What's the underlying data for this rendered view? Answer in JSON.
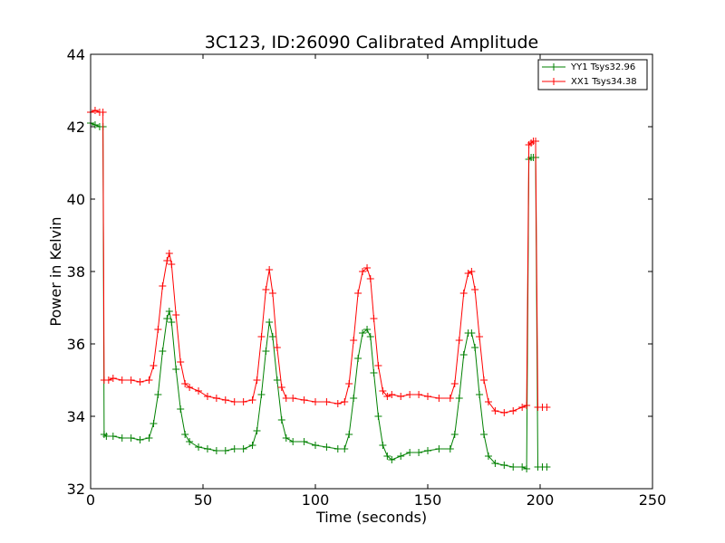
{
  "chart_data": {
    "type": "line",
    "title": "3C123, ID:26090 Calibrated Amplitude",
    "xlabel": "Time (seconds)",
    "ylabel": "Power in Kelvin",
    "xlim": [
      0,
      250
    ],
    "ylim": [
      32,
      44
    ],
    "xticks": [
      0,
      50,
      100,
      150,
      200,
      250
    ],
    "yticks": [
      32,
      34,
      36,
      38,
      40,
      42,
      44
    ],
    "grid": false,
    "legend_position": "top-right",
    "series": [
      {
        "name": "YY1 Tsys32.96",
        "color": "#008000",
        "marker": "+",
        "x": [
          0,
          2,
          4,
          5.5,
          6,
          7,
          10,
          14,
          18,
          22,
          26,
          28,
          30,
          32,
          34,
          35,
          36,
          38,
          40,
          42,
          44,
          48,
          52,
          56,
          60,
          64,
          68,
          72,
          74,
          76,
          78,
          79.5,
          81,
          83,
          85,
          87,
          90,
          95,
          100,
          105,
          110,
          113,
          115,
          117,
          119,
          121,
          123,
          124.5,
          126,
          128,
          130,
          132,
          134,
          138,
          142,
          146,
          150,
          155,
          160,
          162,
          164,
          166,
          168,
          169.5,
          171,
          173,
          175,
          177,
          180,
          184,
          188,
          192,
          194,
          195,
          196,
          197,
          198,
          199,
          201,
          203
        ],
        "y": [
          42.1,
          42.05,
          42.0,
          42.0,
          33.5,
          33.45,
          33.45,
          33.4,
          33.4,
          33.35,
          33.4,
          33.8,
          34.6,
          35.8,
          36.7,
          36.9,
          36.6,
          35.3,
          34.2,
          33.5,
          33.3,
          33.15,
          33.1,
          33.05,
          33.05,
          33.1,
          33.1,
          33.2,
          33.6,
          34.6,
          35.8,
          36.6,
          36.2,
          35.0,
          33.9,
          33.4,
          33.3,
          33.3,
          33.2,
          33.15,
          33.1,
          33.1,
          33.5,
          34.5,
          35.6,
          36.3,
          36.4,
          36.2,
          35.2,
          34.0,
          33.2,
          32.9,
          32.8,
          32.9,
          33.0,
          33.0,
          33.05,
          33.1,
          33.1,
          33.5,
          34.5,
          35.7,
          36.3,
          36.3,
          35.9,
          34.6,
          33.5,
          32.9,
          32.7,
          32.65,
          32.6,
          32.6,
          32.55,
          41.1,
          41.15,
          41.15,
          41.15,
          32.6,
          32.6,
          32.6
        ]
      },
      {
        "name": "XX1 Tsys34.38",
        "color": "#ff0000",
        "marker": "+",
        "x": [
          0,
          2,
          4,
          5.5,
          6,
          8,
          10,
          14,
          18,
          22,
          26,
          28,
          30,
          32,
          34,
          35,
          36,
          38,
          40,
          42,
          44,
          48,
          52,
          56,
          60,
          64,
          68,
          72,
          74,
          76,
          78,
          79.5,
          81,
          83,
          85,
          87,
          90,
          95,
          100,
          105,
          110,
          113,
          115,
          117,
          119,
          121,
          123,
          124.5,
          126,
          128,
          130,
          132,
          134,
          138,
          142,
          146,
          150,
          155,
          160,
          162,
          164,
          166,
          168,
          169.5,
          171,
          173,
          175,
          177,
          180,
          184,
          188,
          192,
          194,
          195,
          196,
          197,
          198,
          199,
          201,
          203
        ],
        "y": [
          42.4,
          42.45,
          42.4,
          42.4,
          35.0,
          35.0,
          35.05,
          35.0,
          35.0,
          34.95,
          35.0,
          35.4,
          36.4,
          37.6,
          38.3,
          38.5,
          38.2,
          36.8,
          35.5,
          34.9,
          34.8,
          34.7,
          34.55,
          34.5,
          34.45,
          34.4,
          34.4,
          34.45,
          35.0,
          36.2,
          37.5,
          38.05,
          37.4,
          35.9,
          34.8,
          34.5,
          34.5,
          34.45,
          34.4,
          34.4,
          34.35,
          34.4,
          34.9,
          36.1,
          37.4,
          38.0,
          38.1,
          37.8,
          36.7,
          35.4,
          34.7,
          34.55,
          34.6,
          34.55,
          34.6,
          34.6,
          34.55,
          34.5,
          34.5,
          34.9,
          36.1,
          37.4,
          37.95,
          38.0,
          37.5,
          36.2,
          35.0,
          34.4,
          34.15,
          34.1,
          34.15,
          34.25,
          34.3,
          41.5,
          41.55,
          41.6,
          41.6,
          34.25,
          34.25,
          34.25
        ]
      }
    ]
  }
}
